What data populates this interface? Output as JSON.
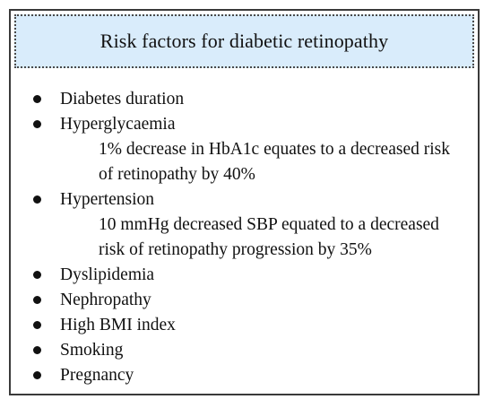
{
  "header": {
    "title": "Risk factors for diabetic retinopathy"
  },
  "factors": [
    {
      "label": "Diabetes duration"
    },
    {
      "label": "Hyperglycaemia",
      "detail": "1% decrease in HbA1c equates to a decreased risk of retinopathy by 40%"
    },
    {
      "label": "Hypertension",
      "detail": "10 mmHg decreased SBP equated to a decreased risk of retinopathy progression by 35%"
    },
    {
      "label": "Dyslipidemia"
    },
    {
      "label": "Nephropathy"
    },
    {
      "label": "High BMI index"
    },
    {
      "label": "Smoking"
    },
    {
      "label": "Pregnancy"
    }
  ],
  "colors": {
    "header_background": "#d9ecfb",
    "border": "#3a3a3a",
    "text": "#111111"
  }
}
